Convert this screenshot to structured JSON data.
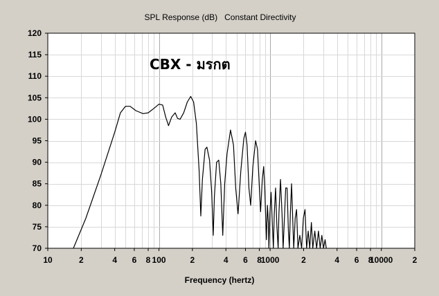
{
  "chart_data": {
    "type": "line",
    "title": "SPL Response (dB)   Constant Directivity",
    "xlabel": "Frequency (hertz)",
    "ylabel": "",
    "x_scale": "log",
    "xlim": [
      10,
      20000
    ],
    "ylim": [
      70,
      120
    ],
    "grid": true,
    "legend": "none",
    "annotation": "CBX - มรกต",
    "y_ticks": [
      70,
      75,
      80,
      85,
      90,
      95,
      100,
      105,
      110,
      115,
      120
    ],
    "x_ticks": [
      {
        "value": 10,
        "label": "10"
      },
      {
        "value": 20,
        "label": "2"
      },
      {
        "value": 40,
        "label": "4"
      },
      {
        "value": 60,
        "label": "6"
      },
      {
        "value": 80,
        "label": "8"
      },
      {
        "value": 100,
        "label": "100"
      },
      {
        "value": 200,
        "label": "2"
      },
      {
        "value": 400,
        "label": "4"
      },
      {
        "value": 600,
        "label": "6"
      },
      {
        "value": 800,
        "label": "8"
      },
      {
        "value": 1000,
        "label": "1000"
      },
      {
        "value": 2000,
        "label": "2"
      },
      {
        "value": 4000,
        "label": "4"
      },
      {
        "value": 6000,
        "label": "6"
      },
      {
        "value": 8000,
        "label": "8"
      },
      {
        "value": 10000,
        "label": "10000"
      },
      {
        "value": 20000,
        "label": "2"
      }
    ],
    "series": [
      {
        "color": "#000000",
        "points": [
          [
            17,
            70
          ],
          [
            22,
            77
          ],
          [
            30,
            87
          ],
          [
            40,
            97
          ],
          [
            45,
            101.5
          ],
          [
            50,
            103
          ],
          [
            55,
            103
          ],
          [
            62,
            102
          ],
          [
            72,
            101.3
          ],
          [
            80,
            101.5
          ],
          [
            90,
            102.5
          ],
          [
            100,
            103.5
          ],
          [
            108,
            103.3
          ],
          [
            115,
            100.5
          ],
          [
            122,
            98.5
          ],
          [
            130,
            100.5
          ],
          [
            140,
            101.5
          ],
          [
            147,
            100.2
          ],
          [
            155,
            100
          ],
          [
            167,
            101.5
          ],
          [
            180,
            104
          ],
          [
            193,
            105.3
          ],
          [
            205,
            104
          ],
          [
            217,
            99
          ],
          [
            230,
            88
          ],
          [
            238,
            77.5
          ],
          [
            246,
            86
          ],
          [
            260,
            93
          ],
          [
            270,
            93.5
          ],
          [
            285,
            90.5
          ],
          [
            298,
            83
          ],
          [
            308,
            73
          ],
          [
            315,
            82
          ],
          [
            330,
            90
          ],
          [
            345,
            90.5
          ],
          [
            360,
            85
          ],
          [
            375,
            73
          ],
          [
            390,
            85
          ],
          [
            410,
            92
          ],
          [
            440,
            97.5
          ],
          [
            468,
            94
          ],
          [
            490,
            84
          ],
          [
            515,
            78
          ],
          [
            545,
            88
          ],
          [
            580,
            95.5
          ],
          [
            600,
            97
          ],
          [
            620,
            94
          ],
          [
            645,
            84
          ],
          [
            668,
            80
          ],
          [
            700,
            89
          ],
          [
            740,
            95
          ],
          [
            770,
            93
          ],
          [
            800,
            84
          ],
          [
            820,
            78.5
          ],
          [
            850,
            86
          ],
          [
            875,
            89
          ],
          [
            895,
            84
          ],
          [
            910,
            78
          ],
          [
            925,
            72
          ],
          [
            945,
            80
          ],
          [
            965,
            76
          ],
          [
            975,
            70
          ],
          [
            995,
            78
          ],
          [
            1020,
            83
          ],
          [
            1050,
            75
          ],
          [
            1070,
            70
          ],
          [
            1090,
            78
          ],
          [
            1120,
            84
          ],
          [
            1150,
            75
          ],
          [
            1180,
            70
          ],
          [
            1200,
            78
          ],
          [
            1240,
            86
          ],
          [
            1280,
            78
          ],
          [
            1310,
            70
          ],
          [
            1340,
            76
          ],
          [
            1380,
            84
          ],
          [
            1420,
            84
          ],
          [
            1460,
            74
          ],
          [
            1490,
            70
          ],
          [
            1520,
            78
          ],
          [
            1560,
            85
          ],
          [
            1600,
            76
          ],
          [
            1630,
            70
          ],
          [
            1680,
            77
          ],
          [
            1730,
            79
          ],
          [
            1780,
            70
          ],
          [
            1850,
            73
          ],
          [
            1920,
            70
          ],
          [
            1990,
            77
          ],
          [
            2060,
            79
          ],
          [
            2130,
            70
          ],
          [
            2200,
            74
          ],
          [
            2270,
            70
          ],
          [
            2350,
            76
          ],
          [
            2420,
            70
          ],
          [
            2520,
            74
          ],
          [
            2620,
            70
          ],
          [
            2720,
            74
          ],
          [
            2820,
            70
          ],
          [
            2920,
            73
          ],
          [
            3020,
            70
          ],
          [
            3120,
            72
          ],
          [
            3200,
            70
          ]
        ]
      }
    ]
  }
}
